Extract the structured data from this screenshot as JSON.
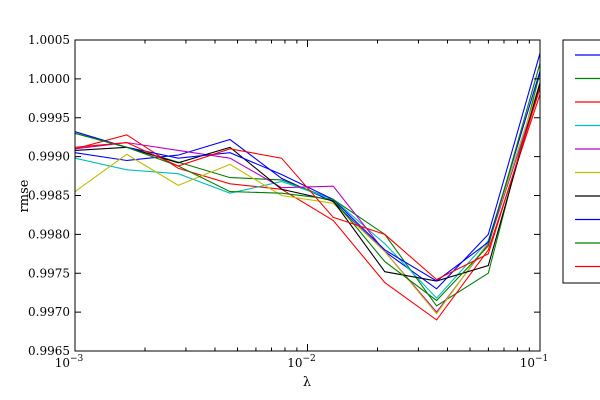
{
  "chart_data": {
    "type": "line",
    "title": "",
    "xlabel": "λ",
    "ylabel": "rmse",
    "x_scale": "log",
    "xlim": [
      0.001,
      0.1
    ],
    "ylim": [
      0.9965,
      1.0005
    ],
    "x_ticks": [
      {
        "value": 0.001,
        "base": "10",
        "exp": "−3"
      },
      {
        "value": 0.01,
        "base": "10",
        "exp": "−2"
      },
      {
        "value": 0.1,
        "base": "10",
        "exp": "−1"
      }
    ],
    "y_ticks": [
      {
        "value": 0.9965,
        "label": "0.9965"
      },
      {
        "value": 0.997,
        "label": "0.9970"
      },
      {
        "value": 0.9975,
        "label": "0.9975"
      },
      {
        "value": 0.998,
        "label": "0.9980"
      },
      {
        "value": 0.9985,
        "label": "0.9985"
      },
      {
        "value": 0.999,
        "label": "0.9990"
      },
      {
        "value": 0.9995,
        "label": "0.9995"
      },
      {
        "value": 1.0,
        "label": "1.0000"
      },
      {
        "value": 1.0005,
        "label": "1.0005"
      }
    ],
    "grid": false,
    "legend": "right, partially cut off",
    "x": [
      0.001,
      0.00167,
      0.00278,
      0.00464,
      0.00774,
      0.0129,
      0.0215,
      0.0359,
      0.0599,
      0.1
    ],
    "series": [
      {
        "color": "#0000ff",
        "values": [
          0.99905,
          0.99895,
          0.99902,
          0.99922,
          0.99872,
          0.99842,
          0.99778,
          0.9973,
          0.998,
          1.00033
        ]
      },
      {
        "color": "#008000",
        "values": [
          0.9993,
          0.99912,
          0.99893,
          0.99873,
          0.9987,
          0.99845,
          0.998,
          0.99708,
          0.9975,
          1.00008
        ]
      },
      {
        "color": "#ff0000",
        "values": [
          0.9991,
          0.99928,
          0.99885,
          0.99865,
          0.99858,
          0.99818,
          0.99738,
          0.9969,
          0.9978,
          0.9998
        ]
      },
      {
        "color": "#00bfbf",
        "values": [
          0.99898,
          0.99883,
          0.99878,
          0.99853,
          0.99868,
          0.99845,
          0.99788,
          0.99718,
          0.99792,
          0.99995
        ]
      },
      {
        "color": "#bf00bf",
        "values": [
          0.9991,
          0.99918,
          0.99908,
          0.99898,
          0.9986,
          0.99862,
          0.99778,
          0.997,
          0.99788,
          0.9999
        ]
      },
      {
        "color": "#bfbf00",
        "values": [
          0.99855,
          0.99903,
          0.99863,
          0.9989,
          0.9985,
          0.9984,
          0.99778,
          0.99698,
          0.9979,
          0.99995
        ]
      },
      {
        "color": "#000000",
        "values": [
          0.99908,
          0.99912,
          0.99892,
          0.99912,
          0.99858,
          0.99843,
          0.99752,
          0.9974,
          0.9976,
          0.99995
        ]
      },
      {
        "color": "#0000ff",
        "values": [
          0.99932,
          0.99912,
          0.99898,
          0.99905,
          0.99877,
          0.99845,
          0.9978,
          0.9974,
          0.9979,
          1.0001
        ]
      },
      {
        "color": "#008000",
        "values": [
          0.9993,
          0.99912,
          0.99888,
          0.99855,
          0.99853,
          0.99845,
          0.99765,
          0.99715,
          0.99785,
          1.0002
        ]
      },
      {
        "color": "#ff0000",
        "values": [
          0.99912,
          0.99918,
          0.99888,
          0.9991,
          0.99898,
          0.99822,
          0.998,
          0.99742,
          0.99775,
          0.99988
        ]
      }
    ]
  }
}
